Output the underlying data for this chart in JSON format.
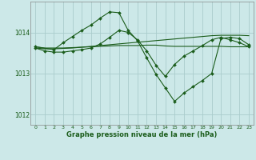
{
  "title": "Graphe pression niveau de la mer (hPa)",
  "bg_color": "#cce8e8",
  "grid_color": "#aacccc",
  "line_color": "#1a5c1a",
  "xlim": [
    -0.5,
    23.5
  ],
  "ylim": [
    1011.75,
    1014.75
  ],
  "yticks": [
    1012,
    1013,
    1014
  ],
  "xticks": [
    0,
    1,
    2,
    3,
    4,
    5,
    6,
    7,
    8,
    9,
    10,
    11,
    12,
    13,
    14,
    15,
    16,
    17,
    18,
    19,
    20,
    21,
    22,
    23
  ],
  "series": [
    {
      "x": [
        0,
        1,
        2,
        3,
        4,
        5,
        6,
        7,
        8,
        9,
        10,
        11,
        12,
        13,
        14,
        15,
        16,
        17,
        18,
        19,
        20,
        21,
        22,
        23
      ],
      "y": [
        1013.65,
        1013.62,
        1013.62,
        1013.62,
        1013.63,
        1013.64,
        1013.65,
        1013.66,
        1013.67,
        1013.68,
        1013.68,
        1013.68,
        1013.69,
        1013.69,
        1013.67,
        1013.66,
        1013.66,
        1013.66,
        1013.66,
        1013.66,
        1013.66,
        1013.65,
        1013.65,
        1013.65
      ],
      "marker": false
    },
    {
      "x": [
        0,
        1,
        2,
        3,
        4,
        5,
        6,
        7,
        8,
        9,
        10,
        11,
        12,
        13,
        14,
        15,
        16,
        17,
        18,
        19,
        20,
        21,
        22,
        23
      ],
      "y": [
        1013.62,
        1013.6,
        1013.6,
        1013.61,
        1013.62,
        1013.64,
        1013.66,
        1013.68,
        1013.7,
        1013.72,
        1013.74,
        1013.76,
        1013.78,
        1013.8,
        1013.82,
        1013.84,
        1013.86,
        1013.88,
        1013.9,
        1013.92,
        1013.93,
        1013.93,
        1013.93,
        1013.92
      ],
      "marker": false
    },
    {
      "x": [
        0,
        2,
        3,
        4,
        5,
        6,
        7,
        8,
        9,
        10,
        11,
        12,
        13,
        14,
        15,
        16,
        17,
        18,
        19,
        20,
        21,
        22,
        23
      ],
      "y": [
        1013.65,
        1013.58,
        1013.75,
        1013.9,
        1014.05,
        1014.18,
        1014.35,
        1014.5,
        1014.48,
        1014.05,
        1013.8,
        1013.38,
        1012.98,
        1012.65,
        1012.32,
        1012.52,
        1012.68,
        1012.83,
        1013.0,
        1013.85,
        1013.88,
        1013.85,
        1013.7
      ],
      "marker": true
    },
    {
      "x": [
        0,
        1,
        2,
        3,
        4,
        5,
        6,
        7,
        8,
        9,
        10,
        11,
        12,
        13,
        14,
        15,
        16,
        17,
        18,
        19,
        20,
        21,
        22,
        23
      ],
      "y": [
        1013.62,
        1013.55,
        1013.52,
        1013.52,
        1013.55,
        1013.58,
        1013.62,
        1013.72,
        1013.88,
        1014.05,
        1014.0,
        1013.82,
        1013.55,
        1013.2,
        1012.93,
        1013.22,
        1013.42,
        1013.55,
        1013.68,
        1013.82,
        1013.88,
        1013.82,
        1013.75,
        1013.65
      ],
      "marker": true
    }
  ]
}
